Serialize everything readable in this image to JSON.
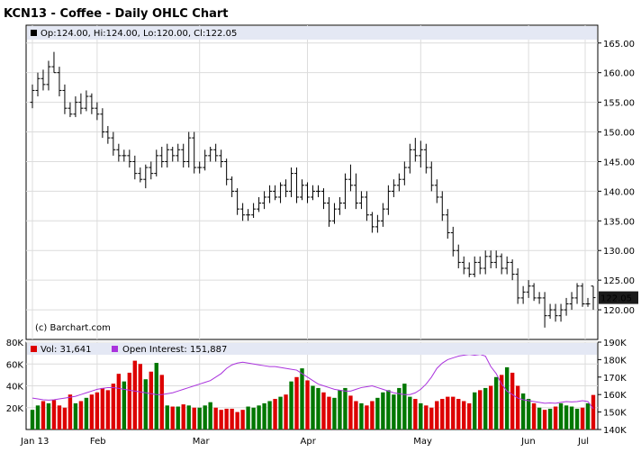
{
  "header": {
    "title": "KCN13 - Coffee - Daily OHLC Chart"
  },
  "info": {
    "ohlc_text": "Op:124.00, Hi:124.00, Lo:120.00, Cl:122.05",
    "copyright": "(c) Barchart.com"
  },
  "volume_legend": {
    "vol_text": "Vol: 31,641",
    "oi_text": "Open Interest: 151,887"
  },
  "colors": {
    "up_volume": "#007700",
    "down_volume": "#dd0000",
    "open_interest": "#aa33dd",
    "legend_bg": "#e4e8f4",
    "last_price_bg": "#1a1a1a"
  },
  "chart_data": [
    {
      "type": "ohlc",
      "ylim": [
        115,
        168
      ],
      "y_ticks": [
        "120.00",
        "125.00",
        "130.00",
        "135.00",
        "140.00",
        "145.00",
        "150.00",
        "155.00",
        "160.00",
        "165.00"
      ],
      "x_ticks": [
        "Jan 13",
        "Feb",
        "Mar",
        "Apr",
        "May",
        "Jun",
        "Jul"
      ],
      "last_price_label": "122.05",
      "candles": [
        {
          "o": 155,
          "h": 158,
          "l": 154,
          "c": 157
        },
        {
          "o": 157,
          "h": 160,
          "l": 156,
          "c": 159
        },
        {
          "o": 159,
          "h": 160.5,
          "l": 157,
          "c": 158
        },
        {
          "o": 158,
          "h": 162,
          "l": 157,
          "c": 161
        },
        {
          "o": 161,
          "h": 163.5,
          "l": 160,
          "c": 160
        },
        {
          "o": 160,
          "h": 161,
          "l": 156,
          "c": 157
        },
        {
          "o": 157,
          "h": 158,
          "l": 153,
          "c": 154
        },
        {
          "o": 154,
          "h": 155,
          "l": 152.5,
          "c": 153
        },
        {
          "o": 153,
          "h": 156,
          "l": 152.5,
          "c": 155
        },
        {
          "o": 155,
          "h": 156.5,
          "l": 153,
          "c": 154
        },
        {
          "o": 154,
          "h": 157,
          "l": 153.5,
          "c": 156
        },
        {
          "o": 156,
          "h": 156.5,
          "l": 153,
          "c": 154
        },
        {
          "o": 154,
          "h": 155,
          "l": 152,
          "c": 153
        },
        {
          "o": 153,
          "h": 154,
          "l": 149,
          "c": 150
        },
        {
          "o": 150,
          "h": 151,
          "l": 148,
          "c": 149
        },
        {
          "o": 149,
          "h": 150,
          "l": 146,
          "c": 147
        },
        {
          "o": 147,
          "h": 148,
          "l": 145,
          "c": 146
        },
        {
          "o": 146,
          "h": 147,
          "l": 145,
          "c": 146
        },
        {
          "o": 146,
          "h": 147,
          "l": 144,
          "c": 145
        },
        {
          "o": 145,
          "h": 146,
          "l": 142,
          "c": 143
        },
        {
          "o": 143,
          "h": 144,
          "l": 141.5,
          "c": 142
        },
        {
          "o": 142,
          "h": 144.5,
          "l": 140.5,
          "c": 144
        },
        {
          "o": 144,
          "h": 145,
          "l": 142,
          "c": 143
        },
        {
          "o": 143,
          "h": 147,
          "l": 142.5,
          "c": 146
        },
        {
          "o": 146,
          "h": 147.5,
          "l": 144,
          "c": 145
        },
        {
          "o": 145,
          "h": 148,
          "l": 144,
          "c": 147
        },
        {
          "o": 147,
          "h": 147.5,
          "l": 145,
          "c": 146
        },
        {
          "o": 146,
          "h": 148,
          "l": 145,
          "c": 147
        },
        {
          "o": 147,
          "h": 148,
          "l": 144,
          "c": 145
        },
        {
          "o": 145,
          "h": 150,
          "l": 144,
          "c": 149
        },
        {
          "o": 149,
          "h": 150,
          "l": 143,
          "c": 144
        },
        {
          "o": 144,
          "h": 145,
          "l": 143,
          "c": 144
        },
        {
          "o": 144,
          "h": 147,
          "l": 143.5,
          "c": 146
        },
        {
          "o": 146,
          "h": 147.5,
          "l": 145,
          "c": 147
        },
        {
          "o": 147,
          "h": 148,
          "l": 145,
          "c": 146
        },
        {
          "o": 146,
          "h": 147,
          "l": 144,
          "c": 145
        },
        {
          "o": 145,
          "h": 145.5,
          "l": 141,
          "c": 142
        },
        {
          "o": 142,
          "h": 142.5,
          "l": 139,
          "c": 140
        },
        {
          "o": 140,
          "h": 140.5,
          "l": 136,
          "c": 137
        },
        {
          "o": 137,
          "h": 138,
          "l": 135,
          "c": 136
        },
        {
          "o": 136,
          "h": 137,
          "l": 135,
          "c": 136
        },
        {
          "o": 136,
          "h": 138,
          "l": 135.5,
          "c": 137
        },
        {
          "o": 137,
          "h": 139,
          "l": 136.5,
          "c": 138
        },
        {
          "o": 138,
          "h": 140,
          "l": 137,
          "c": 139
        },
        {
          "o": 139,
          "h": 141,
          "l": 138,
          "c": 140
        },
        {
          "o": 140,
          "h": 141,
          "l": 138.5,
          "c": 139
        },
        {
          "o": 139,
          "h": 141.5,
          "l": 138,
          "c": 141
        },
        {
          "o": 141,
          "h": 142,
          "l": 139,
          "c": 140
        },
        {
          "o": 140,
          "h": 144,
          "l": 139,
          "c": 143
        },
        {
          "o": 143,
          "h": 144,
          "l": 138,
          "c": 139
        },
        {
          "o": 139,
          "h": 142,
          "l": 138.5,
          "c": 141
        },
        {
          "o": 141,
          "h": 141.5,
          "l": 138,
          "c": 139
        },
        {
          "o": 139,
          "h": 141,
          "l": 138.5,
          "c": 140
        },
        {
          "o": 140,
          "h": 141,
          "l": 139,
          "c": 140
        },
        {
          "o": 140,
          "h": 140.5,
          "l": 137,
          "c": 138
        },
        {
          "o": 138,
          "h": 139,
          "l": 134,
          "c": 135
        },
        {
          "o": 135,
          "h": 138,
          "l": 134.5,
          "c": 137
        },
        {
          "o": 137,
          "h": 139,
          "l": 136,
          "c": 138
        },
        {
          "o": 138,
          "h": 143,
          "l": 137,
          "c": 142
        },
        {
          "o": 142,
          "h": 144.5,
          "l": 140,
          "c": 141
        },
        {
          "o": 141,
          "h": 143,
          "l": 137,
          "c": 138
        },
        {
          "o": 138,
          "h": 140,
          "l": 137,
          "c": 139
        },
        {
          "o": 139,
          "h": 140,
          "l": 135,
          "c": 136
        },
        {
          "o": 136,
          "h": 136.5,
          "l": 133,
          "c": 134
        },
        {
          "o": 134,
          "h": 136,
          "l": 133,
          "c": 135
        },
        {
          "o": 135,
          "h": 138,
          "l": 134,
          "c": 137
        },
        {
          "o": 137,
          "h": 141,
          "l": 136,
          "c": 140
        },
        {
          "o": 140,
          "h": 142,
          "l": 139,
          "c": 141
        },
        {
          "o": 141,
          "h": 143,
          "l": 140,
          "c": 142
        },
        {
          "o": 142,
          "h": 145,
          "l": 141,
          "c": 144
        },
        {
          "o": 144,
          "h": 148,
          "l": 143,
          "c": 147
        },
        {
          "o": 147,
          "h": 149,
          "l": 145,
          "c": 146
        },
        {
          "o": 146,
          "h": 148.5,
          "l": 144,
          "c": 147
        },
        {
          "o": 147,
          "h": 148,
          "l": 143,
          "c": 144
        },
        {
          "o": 144,
          "h": 145,
          "l": 140,
          "c": 141
        },
        {
          "o": 141,
          "h": 142,
          "l": 138,
          "c": 139
        },
        {
          "o": 139,
          "h": 140,
          "l": 135,
          "c": 136
        },
        {
          "o": 136,
          "h": 137,
          "l": 132,
          "c": 133
        },
        {
          "o": 133,
          "h": 134,
          "l": 129,
          "c": 130
        },
        {
          "o": 130,
          "h": 131,
          "l": 127,
          "c": 128
        },
        {
          "o": 128,
          "h": 129,
          "l": 126,
          "c": 127
        },
        {
          "o": 127,
          "h": 128,
          "l": 125.5,
          "c": 126
        },
        {
          "o": 126,
          "h": 129,
          "l": 125.5,
          "c": 128
        },
        {
          "o": 128,
          "h": 129,
          "l": 126,
          "c": 127
        },
        {
          "o": 127,
          "h": 130,
          "l": 126,
          "c": 129
        },
        {
          "o": 129,
          "h": 130,
          "l": 127,
          "c": 128
        },
        {
          "o": 128,
          "h": 130,
          "l": 127,
          "c": 129
        },
        {
          "o": 129,
          "h": 129.5,
          "l": 126,
          "c": 127
        },
        {
          "o": 127,
          "h": 129,
          "l": 126,
          "c": 128
        },
        {
          "o": 128,
          "h": 128.5,
          "l": 125,
          "c": 126
        },
        {
          "o": 126,
          "h": 127,
          "l": 121,
          "c": 122
        },
        {
          "o": 122,
          "h": 124,
          "l": 121,
          "c": 123
        },
        {
          "o": 123,
          "h": 125,
          "l": 122,
          "c": 124
        },
        {
          "o": 124,
          "h": 124.5,
          "l": 121.5,
          "c": 122
        },
        {
          "o": 122,
          "h": 123,
          "l": 121,
          "c": 122
        },
        {
          "o": 122,
          "h": 123,
          "l": 117,
          "c": 119
        },
        {
          "o": 119,
          "h": 121,
          "l": 118.5,
          "c": 120
        },
        {
          "o": 120,
          "h": 121,
          "l": 118,
          "c": 119
        },
        {
          "o": 119,
          "h": 121,
          "l": 118,
          "c": 120
        },
        {
          "o": 120,
          "h": 122,
          "l": 119,
          "c": 121
        },
        {
          "o": 121,
          "h": 123,
          "l": 120,
          "c": 122
        },
        {
          "o": 122,
          "h": 124.5,
          "l": 121,
          "c": 124
        },
        {
          "o": 124,
          "h": 124.5,
          "l": 120.5,
          "c": 121
        },
        {
          "o": 121,
          "h": 122,
          "l": 120.5,
          "c": 121
        },
        {
          "o": 124,
          "h": 124,
          "l": 120,
          "c": 122.05
        }
      ]
    },
    {
      "type": "bar",
      "title": "Volume",
      "volume_ylim": [
        0,
        80000
      ],
      "volume_ticks": [
        "20K",
        "40K",
        "60K",
        "80K"
      ],
      "oi_ylim": [
        140000,
        190000
      ],
      "oi_ticks": [
        "140K",
        "150K",
        "160K",
        "170K",
        "180K",
        "190K"
      ],
      "volume": [
        18000,
        22000,
        26000,
        24000,
        27000,
        22000,
        20000,
        32000,
        24000,
        26000,
        29000,
        32000,
        34000,
        38000,
        36000,
        42000,
        51000,
        44000,
        52000,
        63000,
        60000,
        46000,
        53000,
        61000,
        50000,
        22000,
        21000,
        21000,
        23000,
        22000,
        20000,
        20000,
        22000,
        25000,
        20000,
        18000,
        19000,
        19000,
        16000,
        18000,
        21000,
        20000,
        22000,
        24000,
        26000,
        28000,
        30000,
        32000,
        44000,
        48000,
        56000,
        45000,
        40000,
        38000,
        34000,
        30000,
        29000,
        36000,
        38000,
        31000,
        26000,
        24000,
        22000,
        26000,
        29000,
        34000,
        36000,
        32000,
        38000,
        42000,
        30000,
        28000,
        24000,
        22000,
        20000,
        26000,
        28000,
        30000,
        30000,
        28000,
        26000,
        24000,
        34000,
        36000,
        38000,
        40000,
        48000,
        50000,
        57000,
        52000,
        40000,
        33000,
        28000,
        24000,
        20000,
        18000,
        19000,
        21000,
        24000,
        22000,
        21000,
        19000,
        20000,
        24000,
        31641
      ],
      "open_interest": [
        158000,
        157500,
        157000,
        156800,
        157000,
        157500,
        158000,
        158500,
        159000,
        160000,
        161000,
        162000,
        163000,
        163500,
        164000,
        164000,
        163500,
        163000,
        162500,
        162000,
        161500,
        161000,
        160500,
        160000,
        160000,
        160500,
        161000,
        162000,
        163000,
        164000,
        165000,
        166000,
        167000,
        168000,
        170000,
        172000,
        175000,
        177000,
        178000,
        178500,
        178000,
        177500,
        177000,
        176500,
        176000,
        176000,
        175500,
        175000,
        174500,
        174000,
        172000,
        170000,
        168000,
        166000,
        165000,
        164000,
        163000,
        162500,
        162000,
        162000,
        163000,
        164000,
        164500,
        165000,
        164000,
        163000,
        162000,
        161000,
        160500,
        160000,
        160000,
        161000,
        163000,
        166000,
        170000,
        175000,
        178000,
        180000,
        181000,
        182000,
        182500,
        183000,
        182500,
        183000,
        182000,
        176000,
        172000,
        166000,
        162000,
        160000,
        158000,
        157000,
        156500,
        156000,
        155500,
        155000,
        155200,
        155000,
        155500,
        156000,
        155800,
        156000,
        156500,
        156000,
        151887
      ]
    }
  ]
}
